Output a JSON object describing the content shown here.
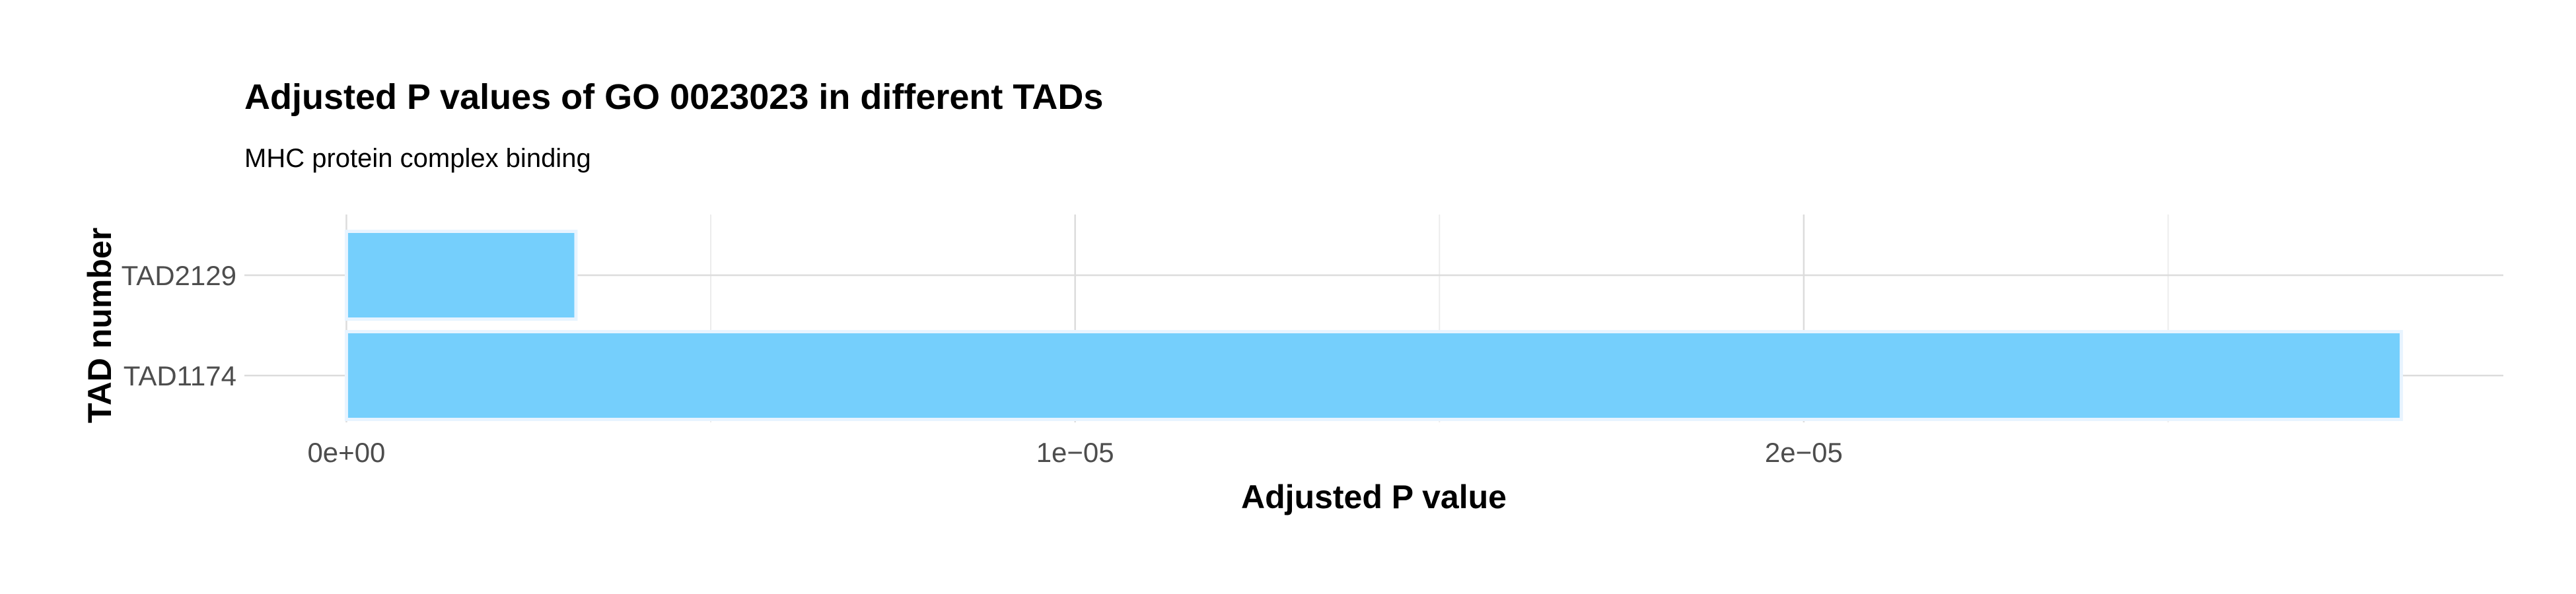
{
  "chart_data": {
    "type": "bar",
    "orientation": "horizontal",
    "title": "Adjusted P values of GO 0023023 in different TADs",
    "subtitle": "MHC protein complex binding",
    "xlabel": "Adjusted P value",
    "ylabel": "TAD number",
    "categories": [
      "TAD2129",
      "TAD1174"
    ],
    "values": [
      3.15e-06,
      2.82e-05
    ],
    "xlim": [
      -1.4e-06,
      2.96e-05
    ],
    "xticks": [
      0,
      1e-05,
      2e-05
    ],
    "xtick_labels": [
      "0e+00",
      "1e−05",
      "2e−05"
    ],
    "grid": true,
    "colors": {
      "bar_fill": "#75cffc",
      "bar_stroke": "#e8f4ff",
      "grid_major": "#dcdcdc",
      "grid_minor": "#ececec"
    }
  }
}
